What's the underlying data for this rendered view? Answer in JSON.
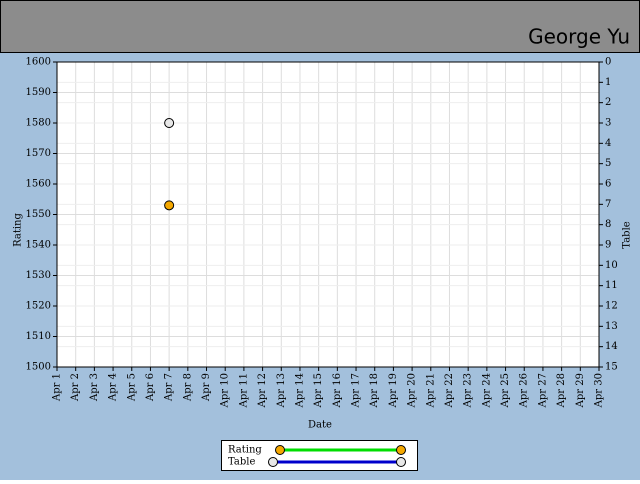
{
  "header": {
    "user": "George Yu"
  },
  "chart_data": {
    "type": "scatter",
    "x_label": "Date",
    "y_label": "Rating",
    "y2_label": "Table",
    "categories": [
      "Apr 1",
      "Apr 2",
      "Apr 3",
      "Apr 4",
      "Apr 5",
      "Apr 6",
      "Apr 7",
      "Apr 8",
      "Apr 9",
      "Apr 10",
      "Apr 11",
      "Apr 12",
      "Apr 13",
      "Apr 14",
      "Apr 15",
      "Apr 16",
      "Apr 17",
      "Apr 18",
      "Apr 19",
      "Apr 20",
      "Apr 21",
      "Apr 22",
      "Apr 23",
      "Apr 24",
      "Apr 25",
      "Apr 26",
      "Apr 27",
      "Apr 28",
      "Apr 29",
      "Apr 30"
    ],
    "series": [
      {
        "name": "Rating",
        "color": "#00dd00",
        "marker_color": "#f5a800",
        "axis": "y",
        "values": [
          null,
          null,
          null,
          null,
          null,
          null,
          1553,
          null,
          null,
          null,
          null,
          null,
          null,
          null,
          null,
          null,
          null,
          null,
          null,
          null,
          null,
          null,
          null,
          null,
          null,
          null,
          null,
          null,
          null,
          null
        ]
      },
      {
        "name": "Table",
        "color": "#0000cc",
        "marker_color": "#e8e8e8",
        "axis": "y2",
        "values": [
          null,
          null,
          null,
          null,
          null,
          null,
          3,
          null,
          null,
          null,
          null,
          null,
          null,
          null,
          null,
          null,
          null,
          null,
          null,
          null,
          null,
          null,
          null,
          null,
          null,
          null,
          null,
          null,
          null,
          null
        ]
      }
    ],
    "ylim": [
      1500,
      1600
    ],
    "yticks": [
      1500,
      1510,
      1520,
      1530,
      1540,
      1550,
      1560,
      1570,
      1580,
      1590,
      1600
    ],
    "y2lim": [
      15,
      0
    ],
    "y2ticks": [
      0,
      1,
      2,
      3,
      4,
      5,
      6,
      7,
      8,
      9,
      10,
      11,
      12,
      13,
      14,
      15
    ],
    "grid": true
  }
}
